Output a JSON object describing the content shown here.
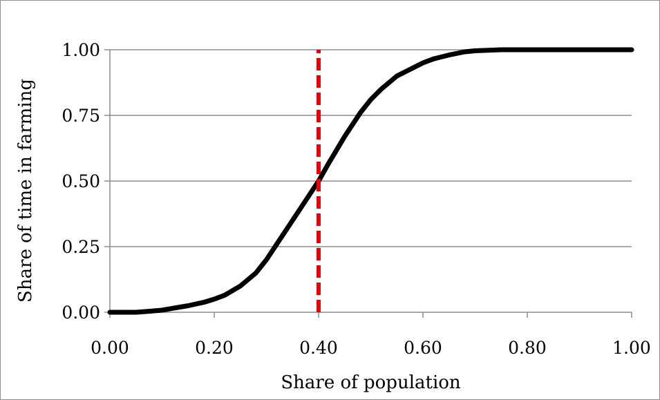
{
  "chart_data": {
    "type": "line",
    "title": "",
    "xlabel": "Share of population",
    "ylabel": "Share of time in farming",
    "xlim": [
      0,
      1
    ],
    "ylim": [
      0,
      1
    ],
    "x_ticks": [
      "0.00",
      "0.20",
      "0.40",
      "0.60",
      "0.80",
      "1.00"
    ],
    "y_ticks": [
      "0.00",
      "0.25",
      "0.50",
      "0.75",
      "1.00"
    ],
    "grid": "horizontal",
    "legend": "none",
    "series": [
      {
        "color": "#000000",
        "style": "solid",
        "x": [
          0.0,
          0.05,
          0.07,
          0.1,
          0.12,
          0.15,
          0.18,
          0.2,
          0.22,
          0.25,
          0.28,
          0.3,
          0.32,
          0.35,
          0.38,
          0.4,
          0.42,
          0.45,
          0.48,
          0.5,
          0.52,
          0.55,
          0.58,
          0.6,
          0.62,
          0.65,
          0.68,
          0.7,
          0.75,
          0.8,
          1.0
        ],
        "y": [
          0.0,
          0.0,
          0.003,
          0.008,
          0.015,
          0.025,
          0.038,
          0.05,
          0.065,
          0.1,
          0.15,
          0.2,
          0.26,
          0.35,
          0.44,
          0.5,
          0.57,
          0.67,
          0.76,
          0.81,
          0.85,
          0.9,
          0.93,
          0.95,
          0.965,
          0.98,
          0.992,
          0.996,
          1.0,
          1.0,
          1.0
        ]
      },
      {
        "color": "#e8000b",
        "style": "dashed",
        "x": [
          0.4,
          0.4
        ],
        "y": [
          0.0,
          1.0
        ]
      }
    ]
  }
}
